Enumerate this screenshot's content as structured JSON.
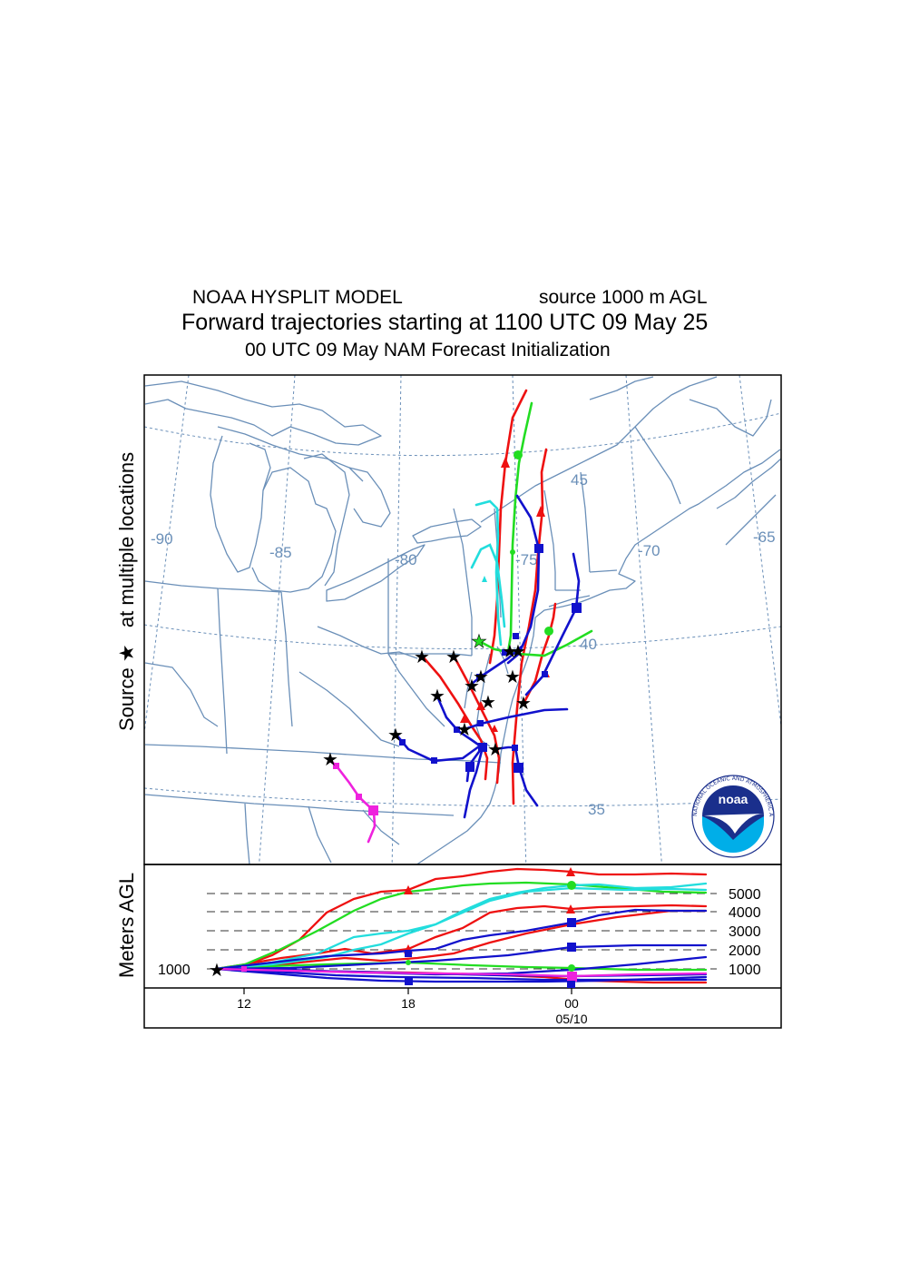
{
  "header": {
    "model": "NOAA HYSPLIT MODEL",
    "source_height": "source 1000 m AGL",
    "title": "Forward trajectories starting at 1100 UTC 09 May 25",
    "init": "00 UTC 09 May    NAM   Forecast Initialization"
  },
  "map": {
    "ylabel_prefix": "Source",
    "ylabel_star": "★",
    "ylabel_suffix": "at multiple locations",
    "lon_labels": [
      "-90",
      "-85",
      "-80",
      "-75",
      "-70",
      "-65"
    ],
    "lat_labels": [
      "45",
      "40",
      "35"
    ],
    "logo_text": "noaa",
    "logo_ring_text": "NATIONAL OCEANIC AND ATMOSPHERIC ADMINISTRATION · U.S. DEPARTMENT OF COMMERCE"
  },
  "height_panel": {
    "ylabel": "Meters AGL",
    "left_label": "1000",
    "right_labels": [
      "5000",
      "4000",
      "3000",
      "2000",
      "1000"
    ],
    "time_ticks": [
      "12",
      "18",
      "00"
    ],
    "date_label": "05/10"
  },
  "colors": {
    "red": "#ee1111",
    "blue": "#1111cc",
    "green": "#22dd22",
    "cyan": "#22dddd",
    "magenta": "#ee22dd",
    "map_lines": "#6a8fb8",
    "noaa_blue": "#1a2f8c"
  }
}
